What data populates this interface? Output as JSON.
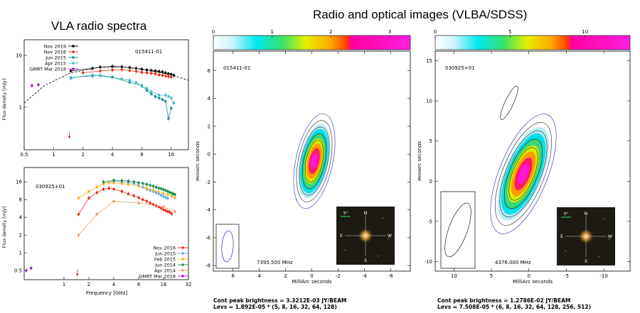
{
  "titles": {
    "left": "VLA radio spectra",
    "right": "Radio and optical images (VLBA/SDSS)"
  },
  "spectra": {
    "xlabel": "Frequency [GHz]",
    "ylabel": "Flux density [mJy]",
    "top": {
      "source": "015411-01",
      "xticks": [
        "0.5",
        "1",
        "2",
        "4",
        "8",
        "16"
      ],
      "yticks": [
        "10",
        "1"
      ],
      "legend": [
        "Nov 2019",
        "Nov 2016",
        "Jun 2015",
        "Apr 2015",
        "GMRT Mar 2018"
      ],
      "colors": [
        "#000000",
        "#e32a1c",
        "#178b86",
        "#43b6c9",
        "#9a13b8"
      ]
    },
    "bottom": {
      "source": "030925+01",
      "xticks": [
        "1",
        "2",
        "4",
        "8",
        "16",
        "32"
      ],
      "yticks": [
        "16",
        "8",
        "4",
        "2",
        "1",
        "0.5"
      ],
      "legend": [
        "Nov 2016",
        "Jun 2015",
        "Feb 2015",
        "Jun 2014",
        "Apr 2014",
        "GMRT Mar 2018"
      ],
      "colors": [
        "#e32a1c",
        "#5aa7ea",
        "#f4b41b",
        "#1d8c4a",
        "#e99c6a",
        "#9a13b8"
      ]
    }
  },
  "chart_data": [
    {
      "type": "line",
      "title": "VLA radio spectra — 015411-01",
      "xlabel": "",
      "ylabel": "Flux density [mJy]",
      "xscale": "log",
      "yscale": "log",
      "xlim": [
        0.5,
        24
      ],
      "ylim": [
        0.15,
        20
      ],
      "series": [
        {
          "name": "Nov 2019",
          "x": [
            1.5,
            2.5,
            3,
            4,
            5,
            6,
            7,
            8,
            9,
            10,
            11,
            12,
            13,
            14,
            15,
            16,
            17
          ],
          "y": [
            5.0,
            5.6,
            5.9,
            6.1,
            6.0,
            5.8,
            5.6,
            5.4,
            5.2,
            5.1,
            5.0,
            4.9,
            4.8,
            4.6,
            4.4,
            4.3,
            4.1
          ]
        },
        {
          "name": "Nov 2016",
          "x": [
            2,
            3,
            4,
            5,
            6,
            7,
            8,
            9,
            10,
            11,
            12,
            13,
            14,
            15,
            16
          ],
          "y": [
            4.6,
            5.0,
            5.2,
            5.3,
            5.1,
            4.9,
            4.7,
            4.6,
            4.5,
            4.4,
            4.2,
            4.1,
            4.0,
            3.9,
            3.8
          ]
        },
        {
          "name": "Jun 2015",
          "x": [
            1.5,
            2.5,
            3,
            4,
            6,
            8,
            9,
            10,
            11,
            12,
            13,
            14,
            15,
            16
          ],
          "y": [
            3.7,
            4.0,
            4.1,
            3.8,
            3.0,
            2.6,
            2.1,
            1.8,
            1.6,
            1.5,
            1.4,
            1.3,
            0.6,
            0.95
          ]
        },
        {
          "name": "Apr 2015",
          "x": [
            1.5,
            2.5,
            3,
            5,
            6,
            7,
            8,
            9,
            10,
            12,
            14,
            15,
            16,
            17
          ],
          "y": [
            3.6,
            4.2,
            4.0,
            3.5,
            3.3,
            3.0,
            2.5,
            2.3,
            2.0,
            1.7,
            1.7,
            1.6,
            1.5,
            1.2
          ]
        },
        {
          "name": "GMRT Mar 2018",
          "x": [
            0.6,
            0.7
          ],
          "y": [
            2.6,
            2.7
          ]
        }
      ],
      "annotations": [
        "015411-01"
      ]
    },
    {
      "type": "line",
      "title": "VLA radio spectra — 030925+01",
      "xlabel": "Frequency [GHz]",
      "ylabel": "Flux density [mJy]",
      "xscale": "log",
      "yscale": "log",
      "xlim": [
        0.33,
        32
      ],
      "ylim": [
        0.35,
        28
      ],
      "series": [
        {
          "name": "Nov 2016",
          "x": [
            1.5,
            2,
            2.5,
            3,
            3.5,
            4,
            5,
            6,
            7,
            8,
            9,
            10,
            11,
            12,
            13,
            14,
            15,
            16,
            17,
            18,
            19,
            20
          ],
          "y": [
            4.5,
            8.5,
            10.5,
            12,
            12.5,
            12,
            11,
            10,
            9.3,
            8.6,
            8,
            7.5,
            7,
            6.6,
            6.3,
            6,
            5.7,
            5.4,
            5.2,
            5,
            4.9,
            4.6
          ]
        },
        {
          "name": "Jun 2015",
          "x": [
            3,
            4,
            5,
            6,
            7,
            8,
            9,
            10,
            11,
            12,
            13,
            14,
            15,
            16,
            17,
            18
          ],
          "y": [
            15,
            16.5,
            16,
            15.5,
            15,
            14,
            13,
            12,
            11.5,
            11,
            10.5,
            10,
            9.5,
            9,
            8.7,
            8.4
          ]
        },
        {
          "name": "Feb 2015",
          "x": [
            1.5,
            2,
            2.5,
            3,
            3.5,
            4,
            5,
            6,
            8,
            10,
            12,
            14,
            16,
            18,
            20,
            22
          ],
          "y": [
            8.5,
            11,
            13,
            15,
            15.5,
            15.5,
            15,
            14.5,
            13.5,
            12.5,
            11.5,
            10.8,
            10.2,
            9.6,
            9.1,
            8.6
          ]
        },
        {
          "name": "Jun 2014",
          "x": [
            3,
            4,
            5,
            6,
            7,
            8,
            9,
            10,
            11,
            12,
            13,
            14,
            15,
            16,
            17,
            18,
            19,
            20,
            21,
            22
          ],
          "y": [
            16,
            17,
            16.8,
            16.5,
            16,
            15.5,
            15,
            14.5,
            14,
            13.5,
            13,
            12.5,
            12.2,
            11.8,
            11.4,
            11,
            10.6,
            10.3,
            10,
            9.7
          ]
        },
        {
          "name": "Apr 2014",
          "x": [
            1.5,
            2.5,
            4,
            8,
            16,
            22
          ],
          "y": [
            2,
            4.5,
            7.5,
            7,
            6,
            5
          ]
        },
        {
          "name": "GMRT Mar 2018",
          "x": [
            0.35,
            0.4
          ],
          "y": [
            0.5,
            0.55
          ]
        }
      ],
      "annotations": [
        "030925+01"
      ]
    },
    {
      "type": "heatmap",
      "title": "Radio and optical images (VLBA/SDSS) — 015411-01",
      "xlabel": "MilliArc seconds",
      "ylabel": "MilliArc seconds",
      "xlim": [
        7.5,
        -7.5
      ],
      "ylim": [
        -8.4,
        7.4
      ],
      "xticks": [
        "6",
        "4",
        "2",
        "0",
        "-2",
        "-4",
        "-6"
      ],
      "yticks": [
        "6",
        "4",
        "2",
        "0",
        "-2",
        "-4",
        "-6",
        "-8"
      ],
      "colorbar_ticks": [
        "0",
        "1",
        "2",
        "3"
      ],
      "source": "015411-01",
      "frequency": "7395.500 MHz",
      "caption": [
        "Cont peak brightness = 3.3212E-03 JY/BEAM",
        "Levs = 1.892E-05 * (5, 8, 16, 32, 64, 128)"
      ]
    },
    {
      "type": "heatmap",
      "title": "Radio and optical images (VLBA/SDSS) — 030925+01",
      "xlabel": "MilliArc seconds",
      "ylabel": "MilliArc seconds",
      "xlim": [
        12.5,
        -13.5
      ],
      "ylim": [
        -11.2,
        16.2
      ],
      "xticks": [
        "10",
        "5",
        "0",
        "-5",
        "-10"
      ],
      "yticks": [
        "15",
        "10",
        "5",
        "0",
        "-5",
        "-10"
      ],
      "colorbar_ticks": [
        "0",
        "5",
        "10"
      ],
      "source": "030925+01",
      "frequency": "4376.000 MHz",
      "caption": [
        "Cont peak brightness = 1.2786E-02 JY/BEAM",
        "Levs = 7.508E-05 * (6, 8, 16, 32, 64, 128, 256, 512)"
      ]
    }
  ],
  "maps": {
    "left": {
      "source": "015411-01",
      "freq": "7395.500 MHz",
      "xlabel": "MilliArc seconds",
      "ylabel": "MilliArc seconds",
      "xticks": [
        "6",
        "4",
        "2",
        "0",
        "-2",
        "-4",
        "-6"
      ],
      "yticks": [
        "6",
        "4",
        "2",
        "0",
        "-2",
        "-4",
        "-6",
        "-8"
      ],
      "cbar_ticks": [
        "0",
        "1",
        "2",
        "3"
      ],
      "cap1": "Cont peak brightness = 3.3212E-03 JY/BEAM",
      "cap2": "Levs = 1.892E-05 * (5, 8, 16, 32, 64, 128)"
    },
    "right": {
      "source": "030925+01",
      "freq": "4376.000 MHz",
      "xlabel": "MilliArc seconds",
      "ylabel": "MilliArc seconds",
      "xticks": [
        "10",
        "5",
        "0",
        "-5",
        "-10"
      ],
      "yticks": [
        "15",
        "10",
        "5",
        "0",
        "-5",
        "-10"
      ],
      "cbar_ticks": [
        "0",
        "5",
        "10"
      ],
      "cap1": "Cont peak brightness = 1.2786E-02 JY/BEAM",
      "cap2": "Levs = 7.508E-05 * (6, 8, 16, 32, 64, 128, 256, 512)"
    },
    "compass": {
      "n": "N",
      "s": "S",
      "e": "E",
      "w": "W",
      "scale": "5\""
    }
  }
}
